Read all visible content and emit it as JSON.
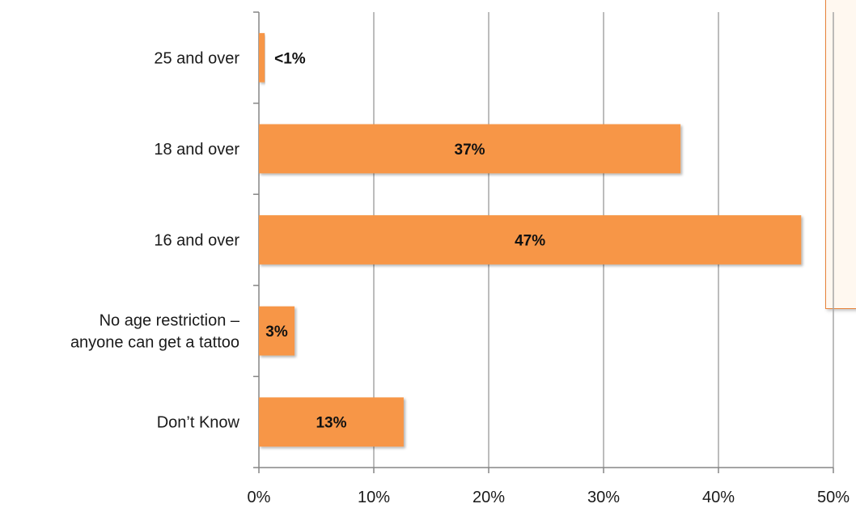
{
  "chart_data": {
    "type": "bar",
    "orientation": "horizontal",
    "title": "",
    "xlabel": "",
    "ylabel": "",
    "categories": [
      "25 and over",
      "18 and over",
      "16 and over",
      "No age restriction – anyone can get a tattoo",
      "Don’t Know"
    ],
    "category_label_lines": [
      [
        "25 and over"
      ],
      [
        "18 and over"
      ],
      [
        "16 and over"
      ],
      [
        "No age restriction –",
        "anyone can get a tattoo"
      ],
      [
        "Don’t Know"
      ]
    ],
    "values": [
      0.5,
      36.7,
      47.2,
      3.1,
      12.6
    ],
    "data_labels": [
      "<1%",
      "37%",
      "47%",
      "3%",
      "13%"
    ],
    "xlim": [
      0,
      50
    ],
    "x_ticks": [
      0,
      10,
      20,
      30,
      40,
      50
    ],
    "x_tick_labels": [
      "0%",
      "10%",
      "20%",
      "30%",
      "40%",
      "50%"
    ],
    "grid": true,
    "bar_color": "#f79646",
    "grid_color": "#a6a6a6"
  }
}
